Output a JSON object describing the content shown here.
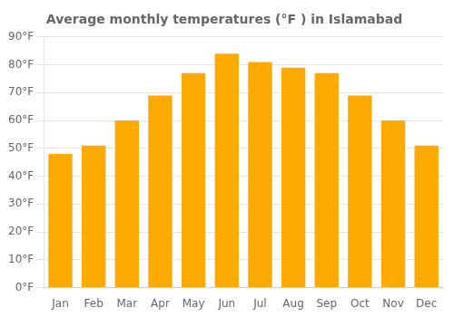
{
  "chart_data": {
    "type": "bar",
    "title": "Average monthly temperatures (°F ) in Islamabad",
    "categories": [
      "Jan",
      "Feb",
      "Mar",
      "Apr",
      "May",
      "Jun",
      "Jul",
      "Aug",
      "Sep",
      "Oct",
      "Nov",
      "Dec"
    ],
    "values": [
      48,
      51,
      60,
      69,
      77,
      84,
      81,
      79,
      77,
      69,
      60,
      51
    ],
    "color": "#FFAA00",
    "ylim": [
      0,
      90
    ],
    "yticks": [
      {
        "value": 0,
        "label": "0°F"
      },
      {
        "value": 10,
        "label": "10°F"
      },
      {
        "value": 20,
        "label": "20°F"
      },
      {
        "value": 30,
        "label": "30°F"
      },
      {
        "value": 40,
        "label": "40°F"
      },
      {
        "value": 50,
        "label": "50°F"
      },
      {
        "value": 60,
        "label": "60°F"
      },
      {
        "value": 70,
        "label": "70°F"
      },
      {
        "value": 80,
        "label": "80°F"
      },
      {
        "value": 90,
        "label": "90°F"
      }
    ],
    "grid": "y"
  }
}
